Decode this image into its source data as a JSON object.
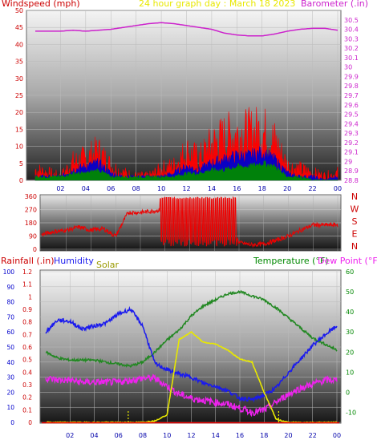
{
  "colors": {
    "wind": "#ff0000",
    "gust": "#ff0000",
    "avg": "#0000cc",
    "low": "#008800",
    "baro": "#cc22cc",
    "title": "#e8e800",
    "dir": "#ee0000",
    "humidity": "#1a1aee",
    "solar": "#e8e800",
    "temp": "#228822",
    "dew": "#ee22ee",
    "rainAxis": "#0000cc",
    "tempAxis": "#008800"
  },
  "header": {
    "windspeed_label": "Windspeed (mph)",
    "title": "24 hour graph day : March 18 2023",
    "barometer_label": "Barometer (.in)"
  },
  "lower_header": {
    "rainfall_label": "Rainfall (.in)",
    "humidity_label": "Humidity",
    "solar_label": "Solar",
    "temperature_label": "Temperature (°F)",
    "dewpoint_label": "Dew Point (°F)"
  },
  "compass": [
    "N",
    "W",
    "S",
    "E",
    "N"
  ],
  "x_ticks": [
    "02",
    "04",
    "06",
    "08",
    "10",
    "12",
    "14",
    "16",
    "18",
    "20",
    "22",
    "00"
  ],
  "chart_data": [
    {
      "type": "line",
      "title": "24 hour graph day : March 18 2023",
      "ylabel": "Windspeed (mph)",
      "y2label": "Barometer (.in)",
      "ylim": [
        0,
        50
      ],
      "y_ticks": [
        "0",
        "5",
        "10",
        "15",
        "20",
        "25",
        "30",
        "35",
        "40",
        "45",
        "50"
      ],
      "y2lim": [
        28.8,
        30.6
      ],
      "y2_ticks": [
        "28.8",
        "28.9",
        "29",
        "29.1",
        "29.2",
        "29.3",
        "29.4",
        "29.5",
        "29.6",
        "29.7",
        "29.8",
        "29.9",
        "30",
        "30.1",
        "30.2",
        "30.3",
        "30.4",
        "30.5"
      ],
      "x_hours": [
        0,
        1,
        2,
        3,
        4,
        5,
        6,
        7,
        8,
        9,
        10,
        11,
        12,
        13,
        14,
        15,
        16,
        17,
        18,
        19,
        20,
        21,
        22,
        23,
        24
      ],
      "series": [
        {
          "name": "Barometer",
          "axis": "right",
          "values": [
            30.38,
            30.38,
            30.38,
            30.39,
            30.38,
            30.39,
            30.4,
            30.42,
            30.44,
            30.46,
            30.47,
            30.46,
            30.44,
            30.42,
            30.4,
            30.36,
            30.34,
            30.33,
            30.33,
            30.35,
            30.38,
            30.4,
            30.41,
            30.41,
            30.39
          ]
        },
        {
          "name": "Wind Gust",
          "values": [
            3,
            2,
            1,
            5,
            6,
            8,
            4,
            2,
            1,
            1,
            3,
            4,
            8,
            6,
            10,
            12,
            13,
            13,
            14,
            11,
            4,
            3,
            2,
            1,
            2
          ]
        },
        {
          "name": "Wind Avg",
          "values": [
            1,
            1,
            1,
            3,
            4,
            5,
            2,
            1,
            1,
            1,
            1,
            2,
            4,
            3,
            5,
            6,
            7,
            7,
            8,
            6,
            2,
            1,
            1,
            0,
            1
          ]
        },
        {
          "name": "Wind Low",
          "values": [
            1,
            1,
            1,
            2,
            2,
            3,
            1,
            1,
            1,
            1,
            1,
            1,
            2,
            2,
            3,
            3,
            4,
            4,
            5,
            4,
            1,
            1,
            0,
            0,
            0
          ]
        }
      ]
    },
    {
      "type": "line",
      "ylabel": "Wind direction",
      "ylim": [
        0,
        360
      ],
      "y_ticks": [
        "0",
        "90",
        "180",
        "270",
        "360"
      ],
      "x_hours": [
        0,
        1,
        2,
        3,
        4,
        5,
        6,
        7,
        8,
        9,
        10,
        11,
        12,
        13,
        14,
        15,
        16,
        17,
        18,
        19,
        20,
        21,
        22,
        23,
        24
      ],
      "series": [
        {
          "name": "Direction",
          "values": [
            100,
            120,
            130,
            150,
            130,
            140,
            90,
            250,
            250,
            260,
            270,
            270,
            250,
            260,
            250,
            230,
            45,
            30,
            35,
            60,
            90,
            130,
            165,
            165,
            165
          ]
        }
      ]
    },
    {
      "type": "line",
      "ylabel": "Humidity",
      "y2label": "Temperature (°F)",
      "ylim": [
        0,
        100
      ],
      "y_ticks": [
        "0",
        "10",
        "20",
        "30",
        "40",
        "50",
        "60",
        "70",
        "80",
        "90",
        "100"
      ],
      "rain_ticks": [
        "0",
        "0.1",
        "0.2",
        "0.3",
        "0.4",
        "0.5",
        "0.6",
        "0.7",
        "0.8",
        "0.9",
        "1",
        "1.1",
        "1.2"
      ],
      "y2lim": [
        -15,
        60
      ],
      "y2_ticks": [
        "-10",
        "0",
        "10",
        "20",
        "30",
        "40",
        "50",
        "60"
      ],
      "x_hours": [
        0,
        1,
        2,
        3,
        4,
        5,
        6,
        7,
        8,
        9,
        10,
        11,
        12,
        13,
        14,
        15,
        16,
        17,
        18,
        19,
        20,
        21,
        22,
        23,
        24
      ],
      "series": [
        {
          "name": "Humidity",
          "values": [
            60,
            68,
            67,
            62,
            64,
            66,
            72,
            75,
            64,
            39,
            35,
            32,
            30,
            26,
            24,
            21,
            16,
            15,
            18,
            23,
            33,
            42,
            51,
            58,
            64
          ]
        },
        {
          "name": "Temperature",
          "axis": "right",
          "values": [
            20,
            17,
            16,
            16,
            16,
            15,
            14,
            13,
            15,
            20,
            26,
            31,
            38,
            43,
            46,
            49,
            50,
            48,
            46,
            42,
            37,
            32,
            27,
            24,
            21
          ]
        },
        {
          "name": "Dew Point",
          "axis": "right",
          "values": [
            7,
            6,
            6,
            5,
            5,
            5,
            5,
            6,
            7,
            7,
            3,
            -1,
            -3,
            -4,
            -5,
            -6,
            -8,
            -10,
            -9,
            -5,
            -1,
            2,
            4,
            6,
            6
          ]
        },
        {
          "name": "Solar",
          "values": [
            0,
            0,
            0,
            0,
            0,
            0,
            0,
            0,
            0,
            1,
            5,
            55,
            60,
            53,
            52,
            48,
            42,
            40,
            20,
            2,
            0,
            0,
            0,
            0,
            0
          ]
        }
      ]
    }
  ]
}
